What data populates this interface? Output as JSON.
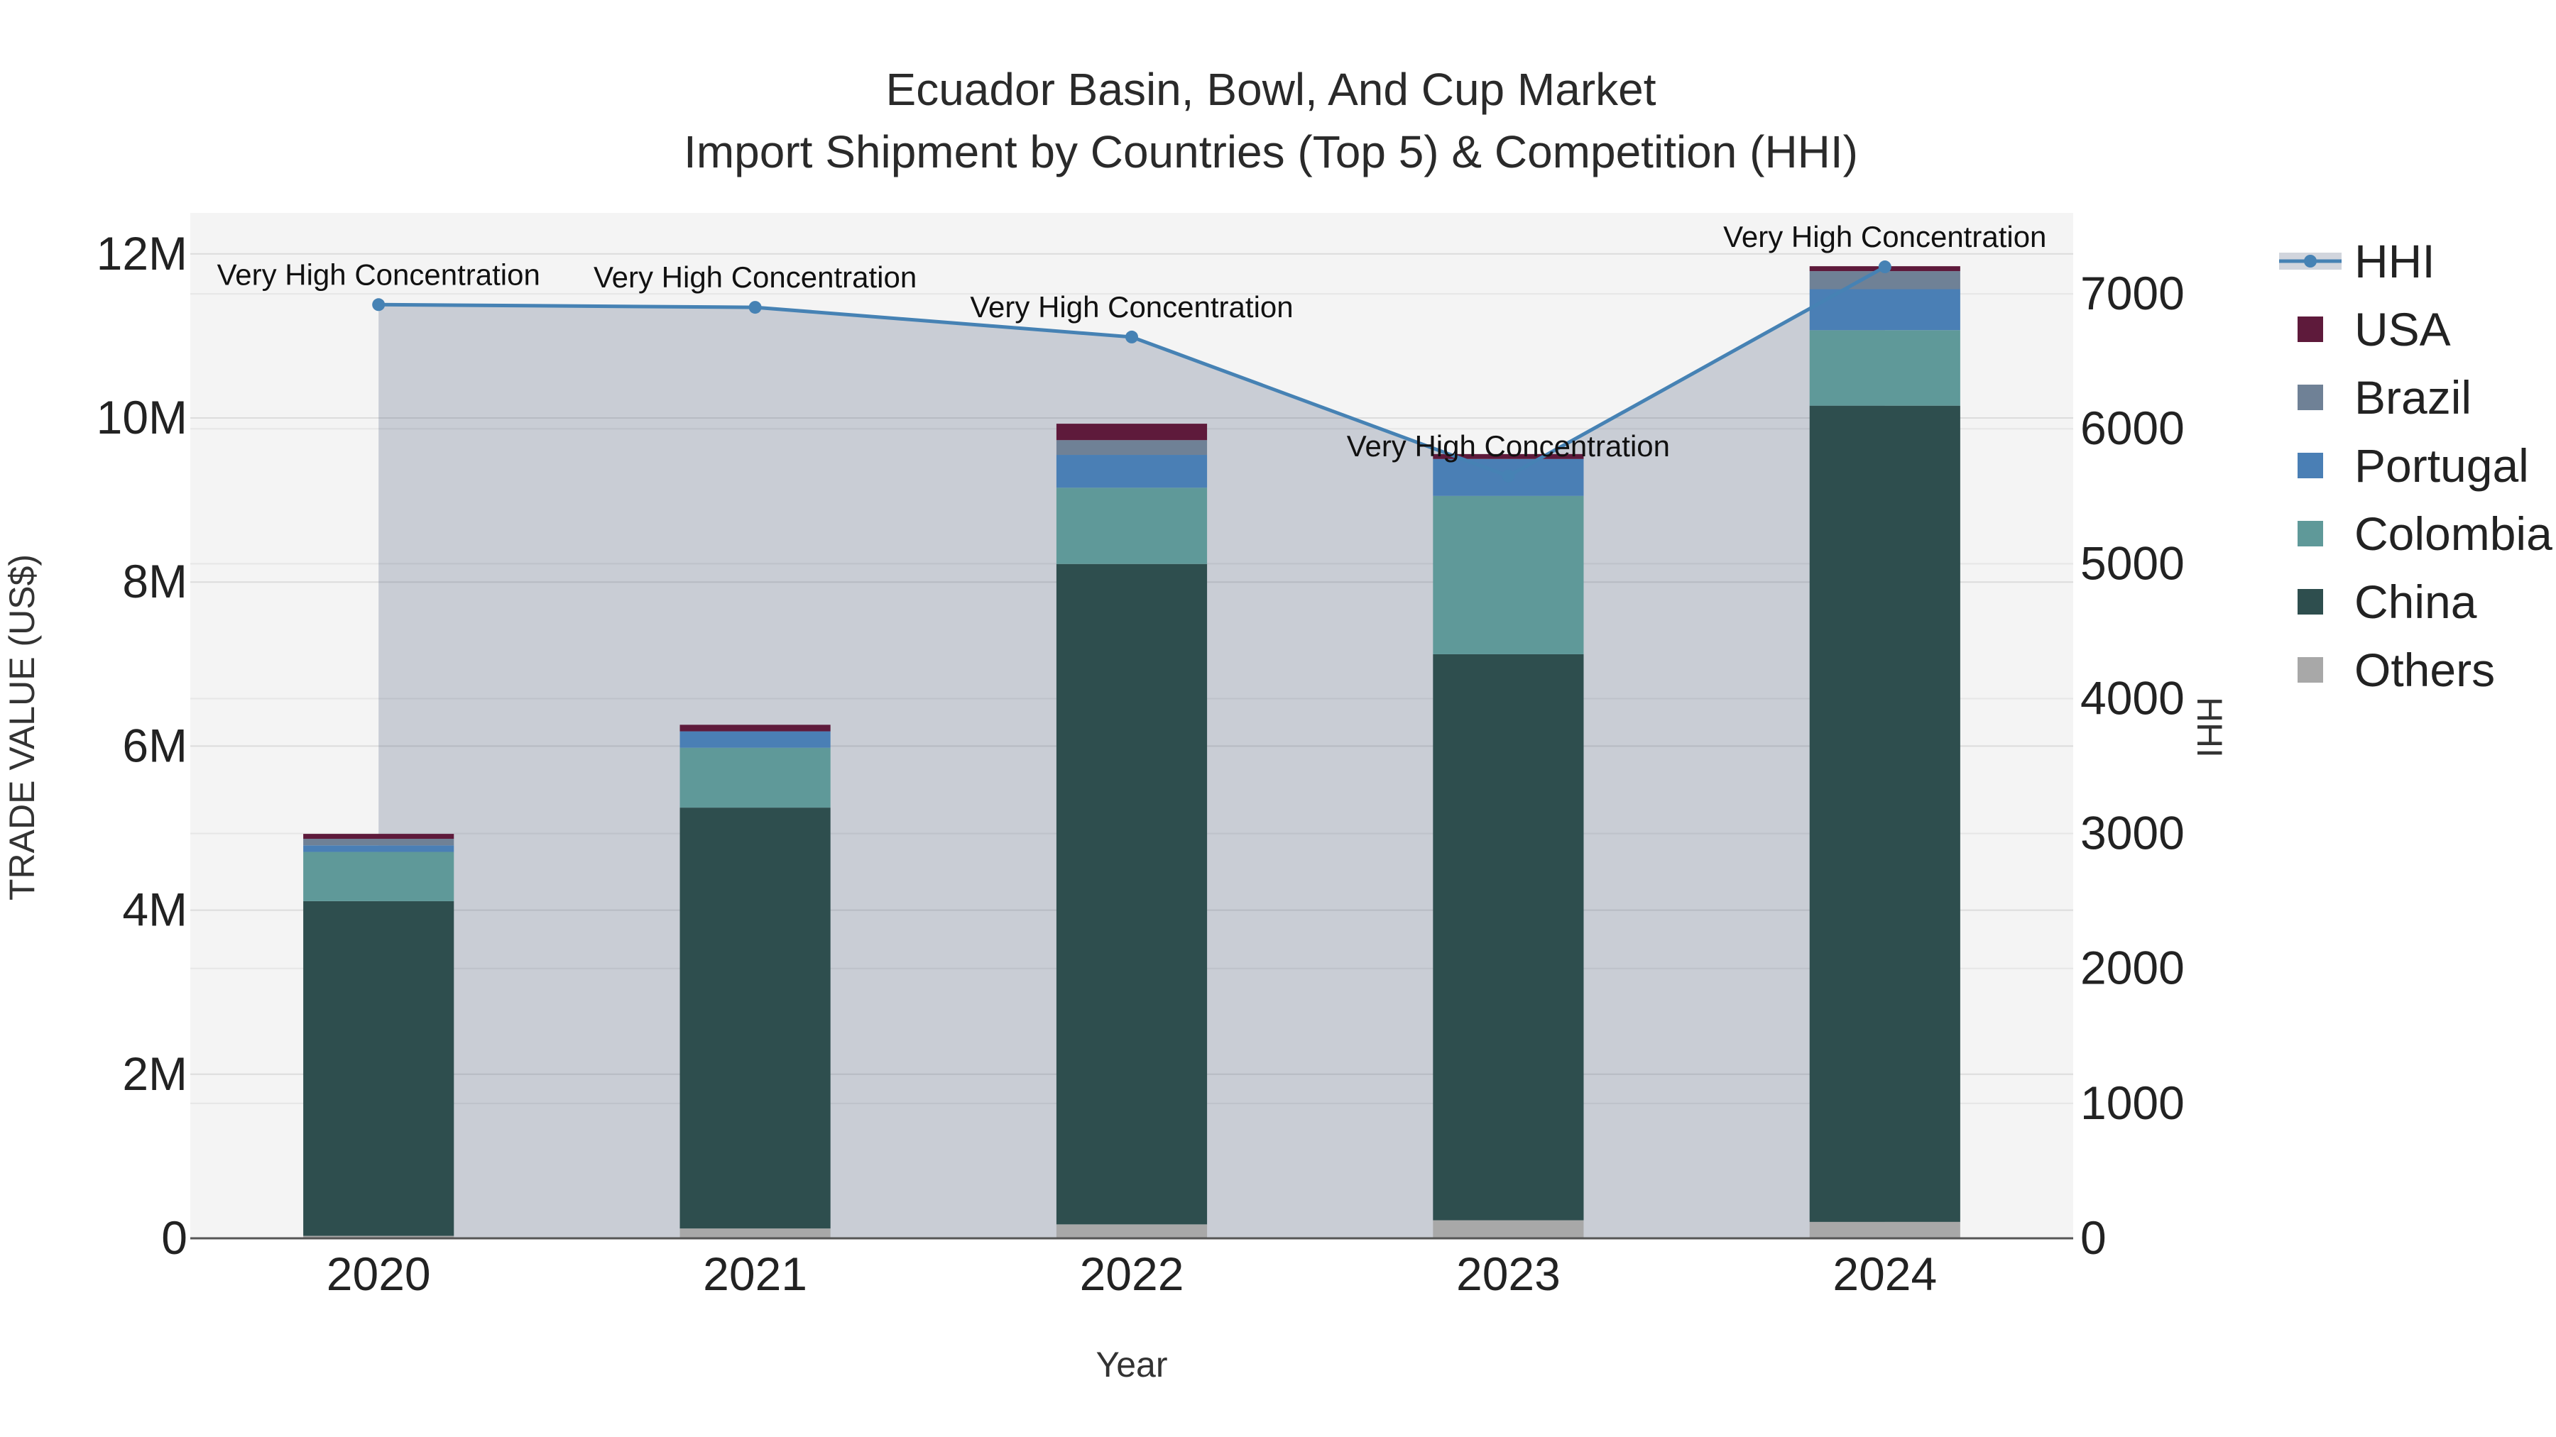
{
  "chart_data": {
    "type": "bar",
    "title": [
      "Ecuador Basin, Bowl, And Cup Market",
      "Import Shipment by Countries (Top 5) & Competition (HHI)"
    ],
    "xlabel": "Year",
    "ylabel": "TRADE VALUE (US$)",
    "y2label": "HHI",
    "categories": [
      "2020",
      "2021",
      "2022",
      "2023",
      "2024"
    ],
    "ylim": [
      0,
      12500000
    ],
    "y2lim": [
      0,
      7600
    ],
    "yticks": [
      0,
      2000000,
      4000000,
      6000000,
      8000000,
      10000000,
      12000000
    ],
    "yticklabels": [
      "0",
      "2M",
      "4M",
      "6M",
      "8M",
      "10M",
      "12M"
    ],
    "y2ticks": [
      0,
      1000,
      2000,
      3000,
      4000,
      5000,
      6000,
      7000
    ],
    "y2ticklabels": [
      "0",
      "1000",
      "2000",
      "3000",
      "4000",
      "5000",
      "6000",
      "7000"
    ],
    "stack_order": [
      "Others",
      "China",
      "Colombia",
      "Portugal",
      "Brazil",
      "USA"
    ],
    "series": [
      {
        "name": "USA",
        "color": "#5e1a3b",
        "values": [
          60000,
          80000,
          200000,
          60000,
          60000
        ]
      },
      {
        "name": "Brazil",
        "color": "#6f8196",
        "values": [
          80000,
          0,
          180000,
          0,
          220000
        ]
      },
      {
        "name": "Portugal",
        "color": "#4a7fb5",
        "values": [
          80000,
          200000,
          400000,
          450000,
          500000
        ]
      },
      {
        "name": "Colombia",
        "color": "#5f9999",
        "values": [
          600000,
          730000,
          930000,
          1930000,
          920000
        ]
      },
      {
        "name": "China",
        "color": "#2e4e4e",
        "values": [
          4080000,
          5130000,
          8050000,
          6900000,
          9950000
        ]
      },
      {
        "name": "Others",
        "color": "#a8a8a8",
        "values": [
          30000,
          120000,
          170000,
          220000,
          200000
        ]
      }
    ],
    "hhi": {
      "name": "HHI",
      "color": "#4682b4",
      "values": [
        6920,
        6900,
        6680,
        5650,
        7200
      ],
      "annotations": [
        "Very High Concentration",
        "Very High Concentration",
        "Very High Concentration",
        "Very High Concentration",
        "Very High Concentration"
      ]
    },
    "legend": [
      "HHI",
      "USA",
      "Brazil",
      "Portugal",
      "Colombia",
      "China",
      "Others"
    ],
    "legend_position": "right"
  }
}
